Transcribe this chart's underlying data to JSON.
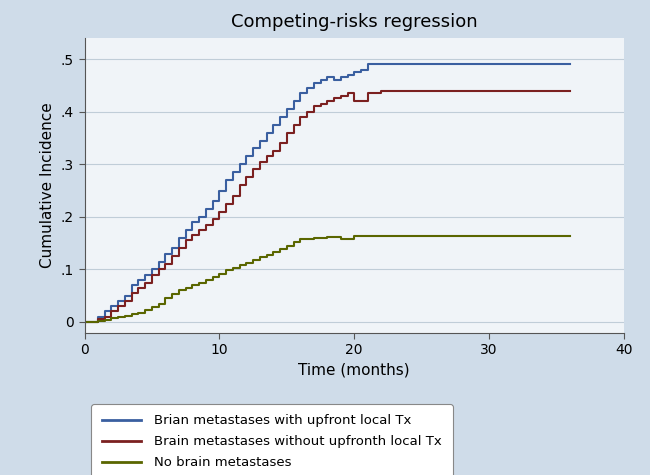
{
  "title": "Competing-risks regression",
  "xlabel": "Time (months)",
  "ylabel": "Cumulative Incidence",
  "xlim": [
    0,
    40
  ],
  "ylim": [
    -0.02,
    0.54
  ],
  "yticks": [
    0,
    0.1,
    0.2,
    0.3,
    0.4,
    0.5
  ],
  "ytick_labels": [
    "0",
    ".1",
    ".2",
    ".3",
    ".4",
    ".5"
  ],
  "xticks": [
    0,
    10,
    20,
    30,
    40
  ],
  "background_color": "#cfdce9",
  "plot_background": "#f0f4f8",
  "grid_color": "#c0cdd8",
  "colors": {
    "blue": "#3a5fa0",
    "red": "#7b2020",
    "olive": "#5a6600"
  },
  "legend_labels": [
    "Brian metastases with upfront local Tx",
    "Brain metastases without upfronth local Tx",
    "No brain metastases"
  ],
  "curve_blue_x": [
    0,
    1,
    1.5,
    2,
    2.5,
    3,
    3.5,
    4,
    4.5,
    5,
    5.5,
    6,
    6.5,
    7,
    7.5,
    8,
    8.5,
    9,
    9.5,
    10,
    10.5,
    11,
    11.5,
    12,
    12.5,
    13,
    13.5,
    14,
    14.5,
    15,
    15.5,
    16,
    16.5,
    17,
    17.5,
    18,
    18.5,
    19,
    19.5,
    20,
    20.5,
    21,
    23,
    36
  ],
  "curve_blue_y": [
    0,
    0.01,
    0.02,
    0.03,
    0.04,
    0.05,
    0.07,
    0.08,
    0.09,
    0.1,
    0.115,
    0.13,
    0.14,
    0.16,
    0.175,
    0.19,
    0.2,
    0.215,
    0.23,
    0.25,
    0.27,
    0.285,
    0.3,
    0.315,
    0.33,
    0.345,
    0.36,
    0.375,
    0.39,
    0.405,
    0.42,
    0.435,
    0.445,
    0.455,
    0.46,
    0.465,
    0.46,
    0.465,
    0.47,
    0.475,
    0.48,
    0.49,
    0.49,
    0.49
  ],
  "curve_red_x": [
    0,
    1,
    1.5,
    2,
    2.5,
    3,
    3.5,
    4,
    4.5,
    5,
    5.5,
    6,
    6.5,
    7,
    7.5,
    8,
    8.5,
    9,
    9.5,
    10,
    10.5,
    11,
    11.5,
    12,
    12.5,
    13,
    13.5,
    14,
    14.5,
    15,
    15.5,
    16,
    16.5,
    17,
    17.5,
    18,
    18.5,
    19,
    19.5,
    20,
    21,
    22,
    23,
    36
  ],
  "curve_red_y": [
    0,
    0.005,
    0.01,
    0.02,
    0.03,
    0.04,
    0.055,
    0.065,
    0.075,
    0.09,
    0.1,
    0.11,
    0.125,
    0.14,
    0.155,
    0.165,
    0.175,
    0.185,
    0.195,
    0.21,
    0.225,
    0.24,
    0.26,
    0.275,
    0.29,
    0.305,
    0.315,
    0.325,
    0.34,
    0.36,
    0.375,
    0.39,
    0.4,
    0.41,
    0.415,
    0.42,
    0.425,
    0.43,
    0.435,
    0.42,
    0.435,
    0.44,
    0.44,
    0.44
  ],
  "curve_olive_x": [
    0,
    1,
    1.5,
    2,
    2.5,
    3,
    3.5,
    4,
    4.5,
    5,
    5.5,
    6,
    6.5,
    7,
    7.5,
    8,
    8.5,
    9,
    9.5,
    10,
    10.5,
    11,
    11.5,
    12,
    12.5,
    13,
    13.5,
    14,
    14.5,
    15,
    15.5,
    16,
    17,
    18,
    19,
    20,
    22,
    24,
    36
  ],
  "curve_olive_y": [
    0,
    0.002,
    0.004,
    0.007,
    0.01,
    0.012,
    0.015,
    0.018,
    0.022,
    0.028,
    0.035,
    0.045,
    0.053,
    0.06,
    0.065,
    0.07,
    0.075,
    0.08,
    0.085,
    0.092,
    0.098,
    0.103,
    0.108,
    0.113,
    0.118,
    0.123,
    0.128,
    0.133,
    0.138,
    0.145,
    0.152,
    0.158,
    0.16,
    0.162,
    0.158,
    0.163,
    0.163,
    0.163,
    0.163
  ]
}
